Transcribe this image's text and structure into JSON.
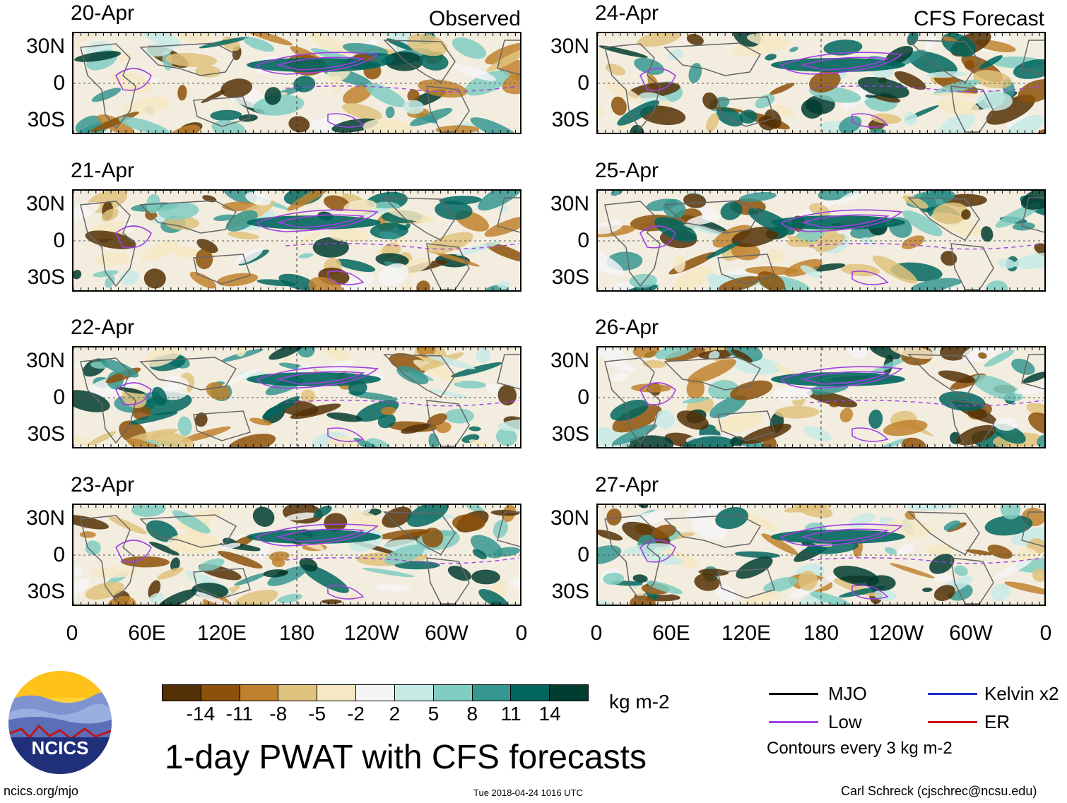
{
  "title": "1-day PWAT with CFS forecasts",
  "columns": {
    "left": "Observed",
    "right": "CFS Forecast"
  },
  "panels": [
    {
      "date": "20-Apr"
    },
    {
      "date": "21-Apr"
    },
    {
      "date": "22-Apr"
    },
    {
      "date": "23-Apr"
    },
    {
      "date": "24-Apr"
    },
    {
      "date": "25-Apr"
    },
    {
      "date": "26-Apr"
    },
    {
      "date": "27-Apr"
    }
  ],
  "lat_labels": [
    "30N",
    "0",
    "30S"
  ],
  "lon_labels": [
    "0",
    "60E",
    "120E",
    "180",
    "120W",
    "60W",
    "0"
  ],
  "colorbar": {
    "units": "kg m-2",
    "labels": [
      "-14",
      "-11",
      "-8",
      "-5",
      "-2",
      "2",
      "5",
      "8",
      "11",
      "14"
    ],
    "colors": [
      "#543005",
      "#8c510a",
      "#bf812d",
      "#dfc27d",
      "#f6e8c3",
      "#f5f5f5",
      "#c7eae5",
      "#80cdc1",
      "#35978f",
      "#01665e",
      "#003c30"
    ]
  },
  "legend": {
    "items": [
      {
        "label": "MJO",
        "color": "#000000"
      },
      {
        "label": "Kelvin x2",
        "color": "#1f2fc8"
      },
      {
        "label": "Low",
        "color": "#a040e0"
      },
      {
        "label": "ER",
        "color": "#d01010"
      }
    ],
    "contours": "Contours every 3 kg m-2"
  },
  "logo_text": "NCICS",
  "footer": {
    "url": "ncics.org/mjo",
    "timestamp": "Tue 2018-04-24 1016 UTC",
    "credit": "Carl Schreck (cjschrec@ncsu.edu)"
  }
}
